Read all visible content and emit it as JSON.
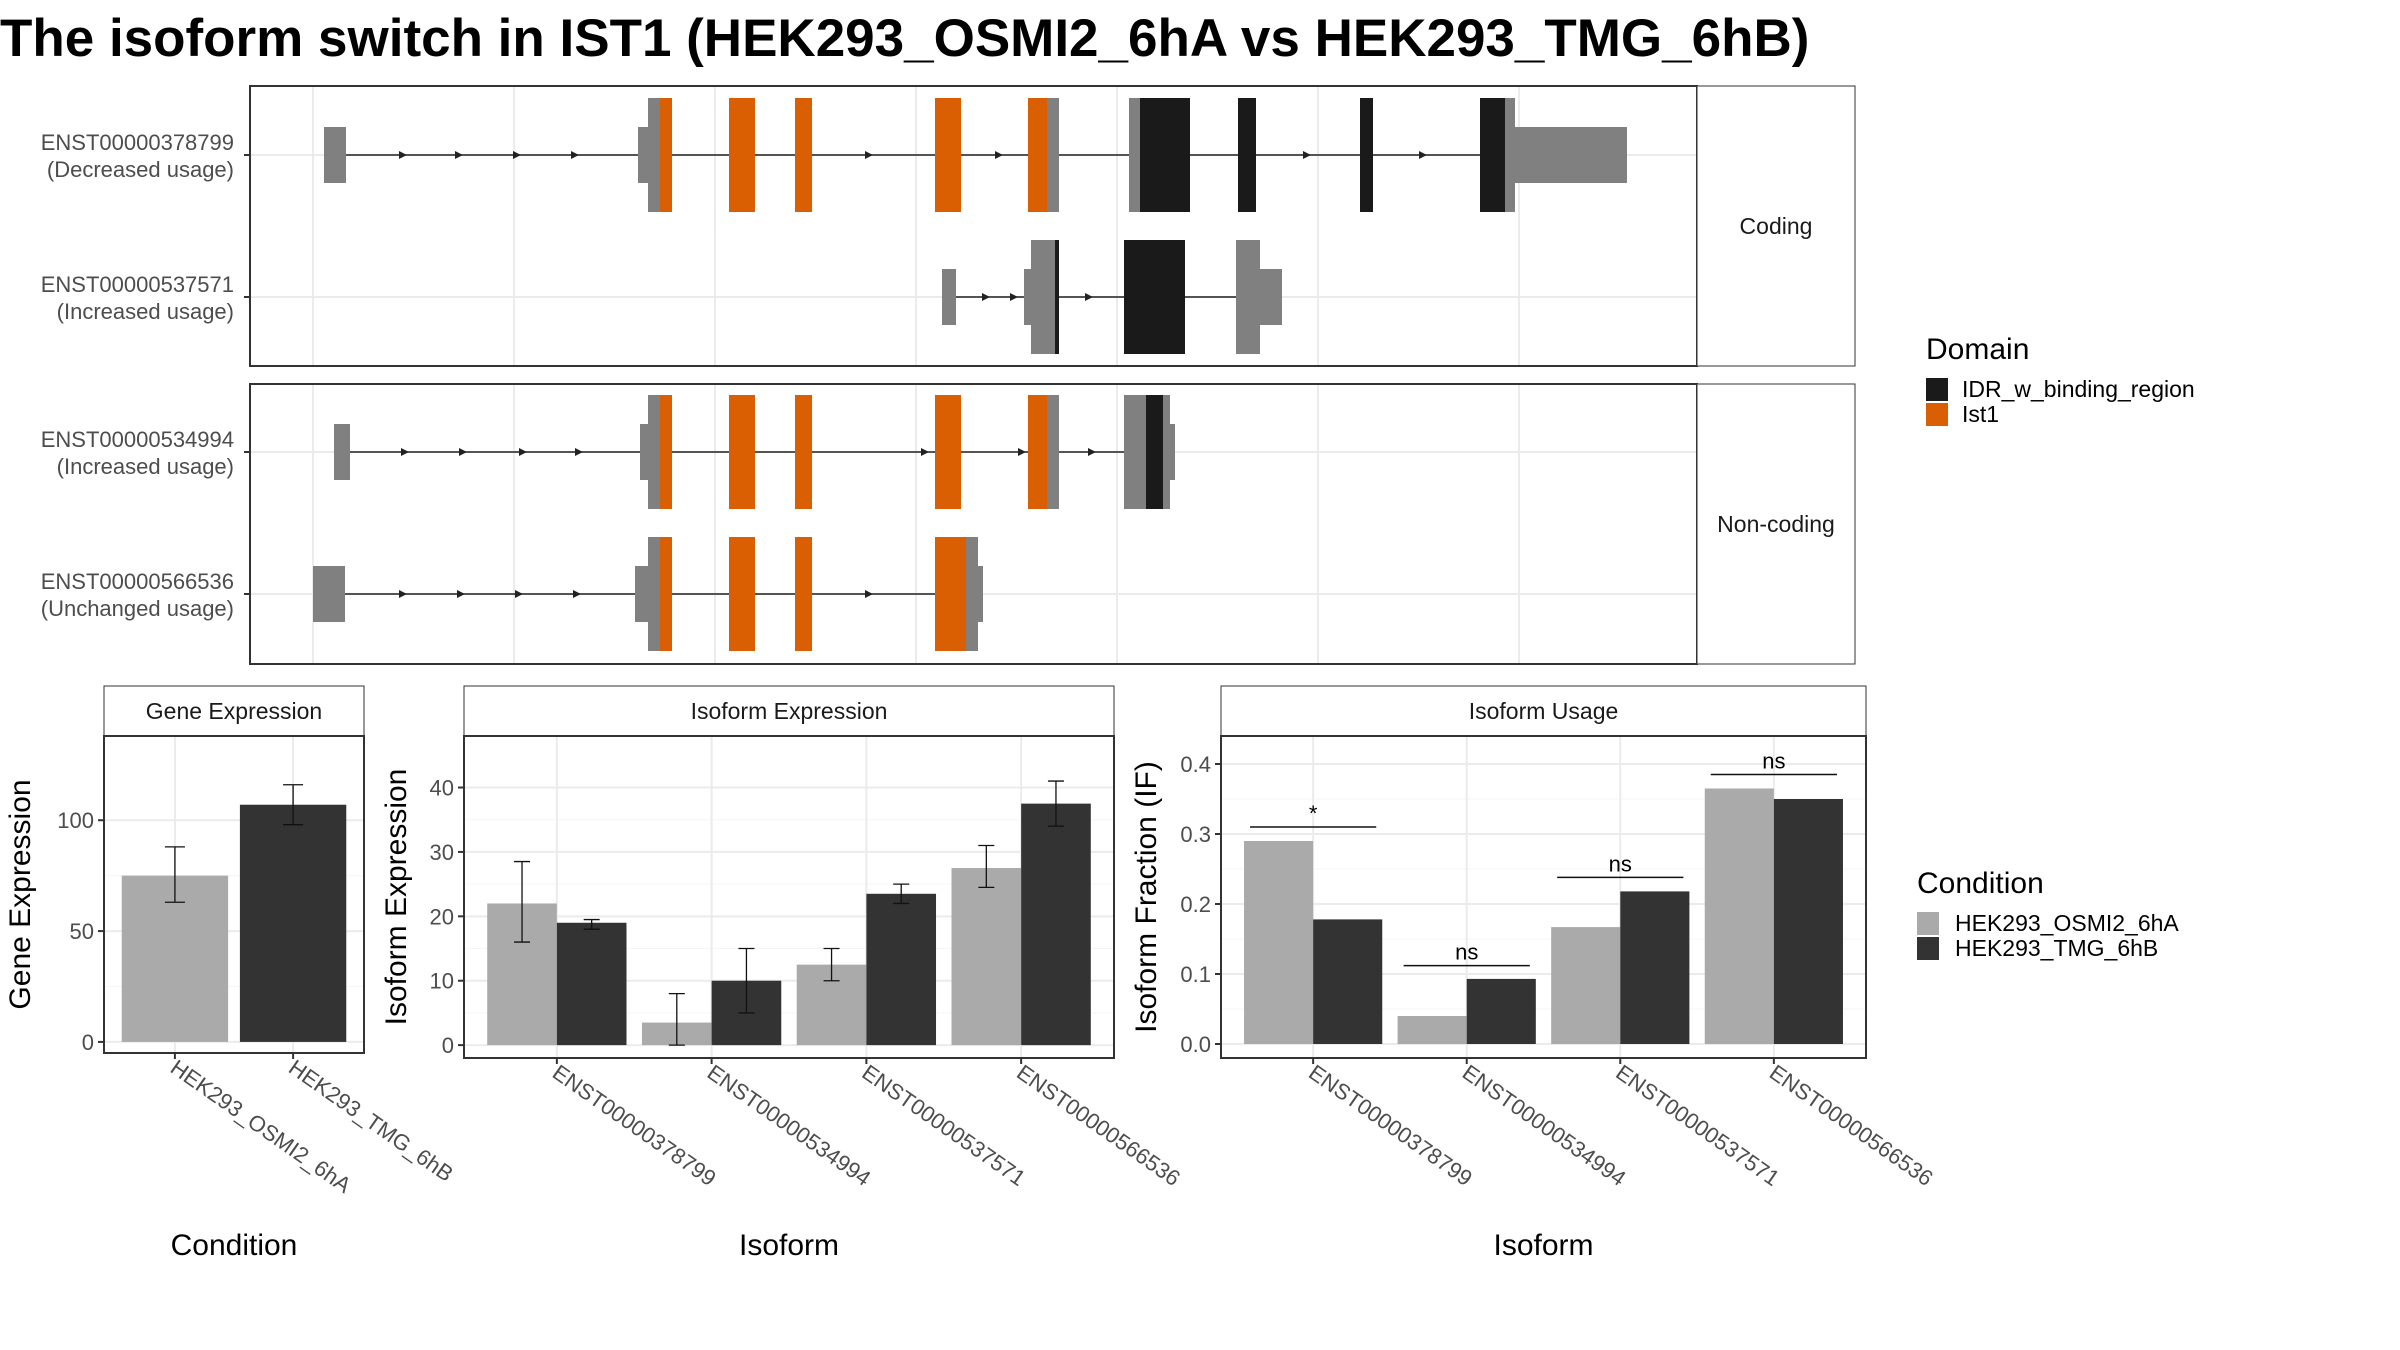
{
  "title": "The isoform switch in IST1 (HEK293_OSMI2_6hA vs HEK293_TMG_6hB)",
  "colors": {
    "cond1": "#aaaaaa",
    "cond2": "#333333",
    "IDR_w_binding_region": "#1a1a1a",
    "Ist1": "#d95f02",
    "exon_plain": "#808080"
  },
  "structure": {
    "facets": [
      "Coding",
      "Non-coding"
    ],
    "isoforms": [
      {
        "id": "ENST00000378799",
        "usage": "(Decreased usage)",
        "facet": "Coding"
      },
      {
        "id": "ENST00000537571",
        "usage": "(Increased usage)",
        "facet": "Coding"
      },
      {
        "id": "ENST00000534994",
        "usage": "(Increased usage)",
        "facet": "Non-coding"
      },
      {
        "id": "ENST00000566536",
        "usage": "(Unchanged usage)",
        "facet": "Non-coding"
      }
    ],
    "domain_legend": {
      "title": "Domain",
      "items": [
        {
          "name": "IDR_w_binding_region",
          "color": "#1a1a1a"
        },
        {
          "name": "Ist1",
          "color": "#d95f02"
        }
      ]
    }
  },
  "condition_legend": {
    "title": "Condition",
    "items": [
      {
        "name": "HEK293_OSMI2_6hA",
        "color": "#aaaaaa"
      },
      {
        "name": "HEK293_TMG_6hB",
        "color": "#333333"
      }
    ]
  },
  "chart_data": [
    {
      "type": "bar",
      "title": "Gene Expression",
      "xlabel": "Condition",
      "ylabel": "Gene Expression",
      "categories": [
        "HEK293_OSMI2_6hA",
        "HEK293_TMG_6hB"
      ],
      "values": [
        75,
        107
      ],
      "error_low": [
        63,
        98
      ],
      "error_high": [
        88,
        116
      ],
      "ylim": [
        -5,
        138
      ],
      "yticks": [
        0,
        50,
        100
      ]
    },
    {
      "type": "bar",
      "title": "Isoform Expression",
      "xlabel": "Isoform",
      "ylabel": "Isoform Expression",
      "categories": [
        "ENST00000378799",
        "ENST00000534994",
        "ENST00000537571",
        "ENST00000566536"
      ],
      "series": [
        {
          "name": "HEK293_OSMI2_6hA",
          "values": [
            22,
            3.5,
            12.5,
            27.5
          ],
          "error_low": [
            16,
            0,
            10,
            24.5
          ],
          "error_high": [
            28.5,
            8,
            15,
            31
          ]
        },
        {
          "name": "HEK293_TMG_6hB",
          "values": [
            19,
            10,
            23.5,
            37.5
          ],
          "error_low": [
            18,
            5,
            22,
            34
          ],
          "error_high": [
            19.5,
            15,
            25,
            41
          ]
        }
      ],
      "ylim": [
        -2,
        48
      ],
      "yticks": [
        0,
        10,
        20,
        30,
        40
      ]
    },
    {
      "type": "bar",
      "title": "Isoform Usage",
      "xlabel": "Isoform",
      "ylabel": "Isoform Fraction (IF)",
      "categories": [
        "ENST00000378799",
        "ENST00000534994",
        "ENST00000537571",
        "ENST00000566536"
      ],
      "series": [
        {
          "name": "HEK293_OSMI2_6hA",
          "values": [
            0.29,
            0.04,
            0.167,
            0.365
          ]
        },
        {
          "name": "HEK293_TMG_6hB",
          "values": [
            0.178,
            0.093,
            0.218,
            0.35
          ]
        }
      ],
      "significance": [
        {
          "label": "*",
          "value": 0.31
        },
        {
          "label": "ns",
          "value": 0.112
        },
        {
          "label": "ns",
          "value": 0.238
        },
        {
          "label": "ns",
          "value": 0.385
        }
      ],
      "ylim": [
        -0.02,
        0.44
      ],
      "yticks": [
        0.0,
        0.1,
        0.2,
        0.3,
        0.4
      ],
      "ytick_labels": [
        "0.0",
        "0.1",
        "0.2",
        "0.3",
        "0.4"
      ]
    }
  ]
}
